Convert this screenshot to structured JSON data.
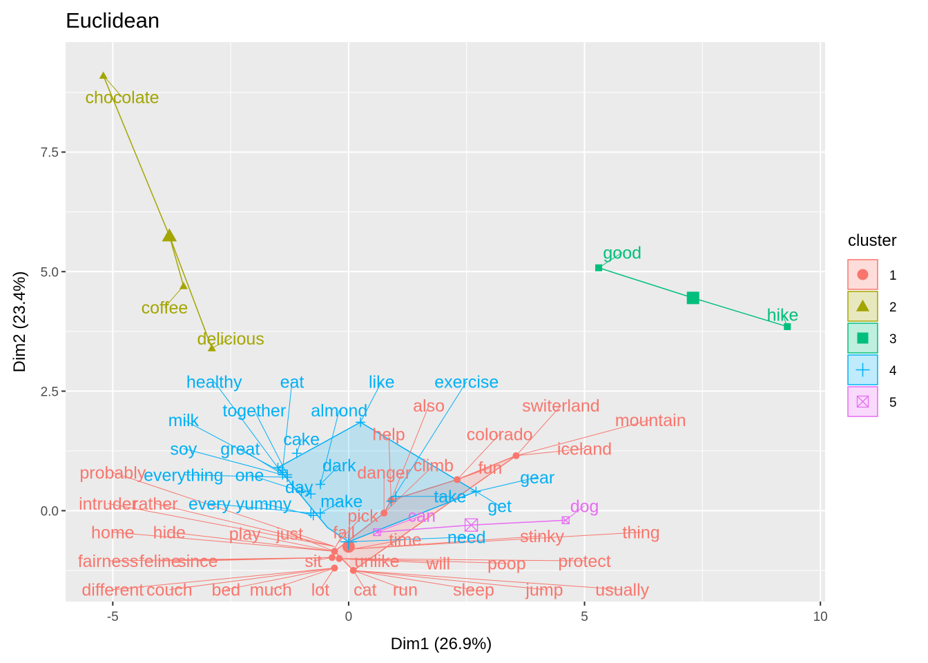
{
  "chart_data": {
    "type": "scatter",
    "title": "Euclidean",
    "xlabel": "Dim1 (26.9%)",
    "ylabel": "Dim2 (23.4%)",
    "xlim": [
      -6,
      10.1
    ],
    "ylim": [
      -1.9,
      9.8
    ],
    "x_ticks": [
      -5,
      0,
      5,
      10
    ],
    "x_tick_labels": [
      "-5",
      "0",
      "5",
      "10"
    ],
    "y_ticks": [
      0.0,
      2.5,
      5.0,
      7.5
    ],
    "y_tick_labels": [
      "0.0",
      "2.5",
      "5.0",
      "7.5"
    ],
    "grid": true,
    "legend": {
      "title": "cluster",
      "position": "right"
    },
    "clusters": [
      {
        "name": "1",
        "color": "#F8766D",
        "shape": "circle",
        "center": [
          0.0,
          -0.75
        ],
        "hull": [
          [
            -0.3,
            -0.85
          ],
          [
            0.1,
            -1.25
          ],
          [
            3.55,
            1.15
          ],
          [
            2.3,
            0.65
          ],
          [
            0.9,
            0.22
          ],
          [
            0.75,
            -0.05
          ],
          [
            -0.3,
            -0.85
          ]
        ],
        "points": [
          {
            "word": "also",
            "x": 0.9,
            "y": 0.22,
            "lx": 1.7,
            "ly": 2.2
          },
          {
            "word": "switerland",
            "x": 3.55,
            "y": 1.15,
            "lx": 4.5,
            "ly": 2.2
          },
          {
            "word": "mountain",
            "x": 3.55,
            "y": 1.15,
            "lx": 6.4,
            "ly": 1.9
          },
          {
            "word": "help",
            "x": 0.9,
            "y": 0.22,
            "lx": 0.85,
            "ly": 1.6
          },
          {
            "word": "colorado",
            "x": 2.3,
            "y": 0.65,
            "lx": 3.2,
            "ly": 1.6
          },
          {
            "word": "iceland",
            "x": 3.55,
            "y": 1.15,
            "lx": 5.0,
            "ly": 1.3
          },
          {
            "word": "climb",
            "x": 0.75,
            "y": -0.05,
            "lx": 1.8,
            "ly": 0.95
          },
          {
            "word": "fun",
            "x": 2.3,
            "y": 0.65,
            "lx": 3.0,
            "ly": 0.9
          },
          {
            "word": "danger",
            "x": 0.75,
            "y": -0.05,
            "lx": 0.75,
            "ly": 0.8
          },
          {
            "word": "probably",
            "x": -0.3,
            "y": -0.75,
            "lx": -5.0,
            "ly": 0.8
          },
          {
            "word": "intruder",
            "x": -0.3,
            "y": -0.75,
            "lx": -5.1,
            "ly": 0.15
          },
          {
            "word": "rather",
            "x": -0.3,
            "y": -0.75,
            "lx": -4.1,
            "ly": 0.15
          },
          {
            "word": "pick",
            "x": -0.25,
            "y": -0.7,
            "lx": 0.3,
            "ly": -0.1
          },
          {
            "word": "home",
            "x": -0.3,
            "y": -0.85,
            "lx": -5.0,
            "ly": -0.45
          },
          {
            "word": "hide",
            "x": -0.3,
            "y": -0.85,
            "lx": -3.8,
            "ly": -0.45
          },
          {
            "word": "play",
            "x": -0.3,
            "y": -0.85,
            "lx": -2.2,
            "ly": -0.48
          },
          {
            "word": "just",
            "x": -0.3,
            "y": -0.85,
            "lx": -1.25,
            "ly": -0.48
          },
          {
            "word": "fall",
            "x": -0.3,
            "y": -0.8,
            "lx": -0.1,
            "ly": -0.45
          },
          {
            "word": "time",
            "x": 0.1,
            "y": -0.8,
            "lx": 1.2,
            "ly": -0.6
          },
          {
            "word": "stinky",
            "x": 0.1,
            "y": -0.8,
            "lx": 4.1,
            "ly": -0.53
          },
          {
            "word": "thing",
            "x": 0.1,
            "y": -0.8,
            "lx": 6.2,
            "ly": -0.45
          },
          {
            "word": "fairness",
            "x": -0.35,
            "y": -0.98,
            "lx": -5.1,
            "ly": -1.05
          },
          {
            "word": "feline",
            "x": -0.35,
            "y": -0.98,
            "lx": -4.0,
            "ly": -1.05
          },
          {
            "word": "since",
            "x": -0.35,
            "y": -0.98,
            "lx": -3.2,
            "ly": -1.05
          },
          {
            "word": "sit",
            "x": -0.35,
            "y": -0.98,
            "lx": -0.75,
            "ly": -1.05
          },
          {
            "word": "unlike",
            "x": -0.2,
            "y": -1.0,
            "lx": 0.6,
            "ly": -1.05
          },
          {
            "word": "will",
            "x": -0.2,
            "y": -1.0,
            "lx": 1.9,
            "ly": -1.1
          },
          {
            "word": "poop",
            "x": -0.2,
            "y": -1.0,
            "lx": 3.35,
            "ly": -1.1
          },
          {
            "word": "protect",
            "x": -0.2,
            "y": -1.0,
            "lx": 5.0,
            "ly": -1.05
          },
          {
            "word": "different",
            "x": -0.3,
            "y": -1.2,
            "lx": -5.0,
            "ly": -1.65
          },
          {
            "word": "couch",
            "x": -0.3,
            "y": -1.2,
            "lx": -3.8,
            "ly": -1.65
          },
          {
            "word": "bed",
            "x": -0.3,
            "y": -1.2,
            "lx": -2.6,
            "ly": -1.65
          },
          {
            "word": "much",
            "x": -0.3,
            "y": -1.2,
            "lx": -1.65,
            "ly": -1.65
          },
          {
            "word": "lot",
            "x": -0.3,
            "y": -1.2,
            "lx": -0.6,
            "ly": -1.65
          },
          {
            "word": "cat",
            "x": 0.1,
            "y": -1.25,
            "lx": 0.35,
            "ly": -1.65
          },
          {
            "word": "run",
            "x": 0.1,
            "y": -1.25,
            "lx": 1.2,
            "ly": -1.65
          },
          {
            "word": "sleep",
            "x": 0.1,
            "y": -1.25,
            "lx": 2.65,
            "ly": -1.65
          },
          {
            "word": "jump",
            "x": 0.1,
            "y": -1.25,
            "lx": 4.15,
            "ly": -1.65
          },
          {
            "word": "usually",
            "x": 0.1,
            "y": -1.25,
            "lx": 5.8,
            "ly": -1.65
          }
        ],
        "dots": [
          [
            0.9,
            0.22
          ],
          [
            3.55,
            1.15
          ],
          [
            2.3,
            0.65
          ],
          [
            0.75,
            -0.05
          ],
          [
            -0.3,
            -0.85
          ],
          [
            -0.35,
            -0.98
          ],
          [
            -0.2,
            -1.0
          ],
          [
            -0.3,
            -1.2
          ],
          [
            0.1,
            -1.25
          ]
        ]
      },
      {
        "name": "2",
        "color": "#A3A500",
        "shape": "triangle",
        "center": [
          -3.8,
          5.75
        ],
        "hull": [],
        "points": [
          {
            "word": "chocolate",
            "x": -5.2,
            "y": 9.1,
            "lx": -4.8,
            "ly": 8.65
          },
          {
            "word": "coffee",
            "x": -3.5,
            "y": 4.7,
            "lx": -3.9,
            "ly": 4.25
          },
          {
            "word": "delicious",
            "x": -2.9,
            "y": 3.4,
            "lx": -2.5,
            "ly": 3.6
          }
        ]
      },
      {
        "name": "3",
        "color": "#00BF7D",
        "shape": "square",
        "center": [
          7.3,
          4.45
        ],
        "hull": [],
        "points": [
          {
            "word": "good",
            "x": 5.3,
            "y": 5.08,
            "lx": 5.8,
            "ly": 5.4
          },
          {
            "word": "hike",
            "x": 9.3,
            "y": 3.85,
            "lx": 9.2,
            "ly": 4.1
          }
        ]
      },
      {
        "name": "4",
        "color": "#00B0F6",
        "shape": "plus",
        "center": [
          0.0,
          -0.65
        ],
        "hull": [
          [
            -0.45,
            -0.35
          ],
          [
            -1.5,
            0.9
          ],
          [
            0.25,
            1.85
          ],
          [
            2.7,
            0.4
          ],
          [
            0.0,
            -0.65
          ],
          [
            -0.45,
            -0.35
          ]
        ],
        "points": [
          {
            "word": "healthy",
            "x": -1.5,
            "y": 0.9,
            "lx": -2.85,
            "ly": 2.7
          },
          {
            "word": "eat",
            "x": -1.4,
            "y": 0.85,
            "lx": -1.2,
            "ly": 2.7
          },
          {
            "word": "like",
            "x": 0.25,
            "y": 1.85,
            "lx": 0.7,
            "ly": 2.7
          },
          {
            "word": "exercise",
            "x": 0.9,
            "y": 0.2,
            "lx": 2.5,
            "ly": 2.7
          },
          {
            "word": "together",
            "x": -1.3,
            "y": 0.75,
            "lx": -2.0,
            "ly": 2.1
          },
          {
            "word": "almond",
            "x": -0.6,
            "y": 0.55,
            "lx": -0.2,
            "ly": 2.1
          },
          {
            "word": "milk",
            "x": -1.4,
            "y": 0.8,
            "lx": -3.5,
            "ly": 1.9
          },
          {
            "word": "cake",
            "x": -1.1,
            "y": 1.2,
            "lx": -1.0,
            "ly": 1.5
          },
          {
            "word": "soy",
            "x": -1.4,
            "y": 0.75,
            "lx": -3.5,
            "ly": 1.3
          },
          {
            "word": "great",
            "x": -1.3,
            "y": 0.7,
            "lx": -2.3,
            "ly": 1.3
          },
          {
            "word": "dark",
            "x": -0.6,
            "y": 0.55,
            "lx": -0.2,
            "ly": 0.95
          },
          {
            "word": "everything",
            "x": -1.3,
            "y": 0.7,
            "lx": -3.5,
            "ly": 0.75
          },
          {
            "word": "one",
            "x": -1.0,
            "y": 0.4,
            "lx": -2.1,
            "ly": 0.75
          },
          {
            "word": "day",
            "x": -0.8,
            "y": 0.35,
            "lx": -1.05,
            "ly": 0.5
          },
          {
            "word": "gear",
            "x": 2.7,
            "y": 0.4,
            "lx": 4.0,
            "ly": 0.7
          },
          {
            "word": "make",
            "x": -0.6,
            "y": -0.05,
            "lx": -0.15,
            "ly": 0.2
          },
          {
            "word": "take",
            "x": 1.0,
            "y": 0.3,
            "lx": 2.15,
            "ly": 0.3
          },
          {
            "word": "every",
            "x": -0.8,
            "y": -0.05,
            "lx": -2.95,
            "ly": 0.15
          },
          {
            "word": "yummy",
            "x": -0.75,
            "y": -0.1,
            "lx": -1.8,
            "ly": 0.15
          },
          {
            "word": "get",
            "x": 2.7,
            "y": 0.4,
            "lx": 3.2,
            "ly": 0.1
          },
          {
            "word": "need",
            "x": 0.0,
            "y": -0.65,
            "lx": 2.5,
            "ly": -0.55
          }
        ]
      },
      {
        "name": "5",
        "color": "#E76BF3",
        "shape": "square-x",
        "center": [
          2.6,
          -0.3
        ],
        "hull": [],
        "points": [
          {
            "word": "can",
            "x": 0.6,
            "y": -0.45,
            "lx": 1.55,
            "ly": -0.1
          },
          {
            "word": "dog",
            "x": 4.6,
            "y": -0.2,
            "lx": 5.0,
            "ly": 0.1
          }
        ]
      }
    ]
  }
}
